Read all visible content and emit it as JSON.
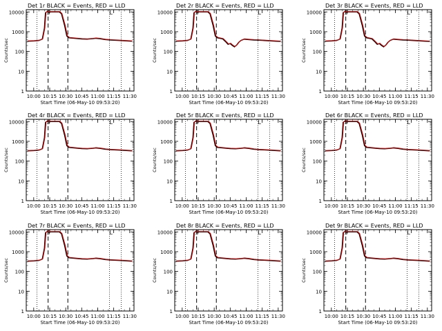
{
  "chart_data": [
    {
      "type": "line",
      "title": "Det 1r BLACK = Events, RED = LLD",
      "series": [
        {
          "name": "BLACK = Events",
          "color": "#000000"
        },
        {
          "name": "RED = LLD",
          "color": "#cc0000"
        }
      ],
      "profile": "plain"
    },
    {
      "type": "line",
      "title": "Det 2r BLACK = Events, RED = LLD",
      "series": [
        {
          "name": "BLACK = Events",
          "color": "#000000"
        },
        {
          "name": "RED = LLD",
          "color": "#cc0000"
        }
      ],
      "profile": "dip"
    },
    {
      "type": "line",
      "title": "Det 3r BLACK = Events, RED = LLD",
      "series": [
        {
          "name": "BLACK = Events",
          "color": "#000000"
        },
        {
          "name": "RED = LLD",
          "color": "#cc0000"
        }
      ],
      "profile": "dip"
    },
    {
      "type": "line",
      "title": "Det 4r BLACK = Events, RED = LLD",
      "series": [
        {
          "name": "BLACK = Events",
          "color": "#000000"
        },
        {
          "name": "RED = LLD",
          "color": "#cc0000"
        }
      ],
      "profile": "plain"
    },
    {
      "type": "line",
      "title": "Det 5r BLACK = Events, RED = LLD",
      "series": [
        {
          "name": "BLACK = Events",
          "color": "#000000"
        },
        {
          "name": "RED = LLD",
          "color": "#cc0000"
        }
      ],
      "profile": "plain"
    },
    {
      "type": "line",
      "title": "Det 6r BLACK = Events, RED = LLD",
      "series": [
        {
          "name": "BLACK = Events",
          "color": "#000000"
        },
        {
          "name": "RED = LLD",
          "color": "#cc0000"
        }
      ],
      "profile": "plain"
    },
    {
      "type": "line",
      "title": "Det 7r BLACK = Events, RED = LLD",
      "series": [
        {
          "name": "BLACK = Events",
          "color": "#000000"
        },
        {
          "name": "RED = LLD",
          "color": "#cc0000"
        }
      ],
      "profile": "plain"
    },
    {
      "type": "line",
      "title": "Det 8r BLACK = Events, RED = LLD",
      "series": [
        {
          "name": "BLACK = Events",
          "color": "#000000"
        },
        {
          "name": "RED = LLD",
          "color": "#cc0000"
        }
      ],
      "profile": "plain"
    },
    {
      "type": "line",
      "title": "Det 9r BLACK = Events, RED = LLD",
      "series": [
        {
          "name": "BLACK = Events",
          "color": "#000000"
        },
        {
          "name": "RED = LLD",
          "color": "#cc0000"
        }
      ],
      "profile": "plain"
    }
  ],
  "shared": {
    "xlabel": "Start Time (06-May-10 09:53:20)",
    "ylabel": "Counts/sec",
    "x_ticks": [
      "10:00",
      "10:15",
      "10:30",
      "10:45",
      "11:00",
      "11:15",
      "11:30"
    ],
    "x_tick_minutes": [
      0,
      15,
      30,
      45,
      60,
      75,
      90
    ],
    "xlim_minutes": [
      -7,
      94
    ],
    "y_ticks": [
      "1",
      "10",
      "100",
      "1000",
      "10000"
    ],
    "y_tick_values": [
      1,
      10,
      100,
      1000,
      10000
    ],
    "ylim": [
      1,
      13000
    ],
    "y_scale": "log",
    "markers": {
      "dashed_minutes": [
        13.5,
        32
      ],
      "dotted_minutes": [
        3,
        71,
        82
      ],
      "labels": [
        {
          "text": "S",
          "minute": 12
        },
        {
          "text": "L",
          "minute": 71
        }
      ]
    },
    "base_series": [
      [
        -6,
        330
      ],
      [
        0,
        340
      ],
      [
        5,
        360
      ],
      [
        8,
        420
      ],
      [
        10,
        1500
      ],
      [
        11,
        9000
      ],
      [
        12,
        10000
      ],
      [
        24,
        10000
      ],
      [
        26,
        8000
      ],
      [
        29,
        2000
      ],
      [
        31,
        600
      ],
      [
        33,
        490
      ],
      [
        38,
        460
      ],
      [
        45,
        430
      ],
      [
        50,
        420
      ],
      [
        55,
        440
      ],
      [
        58,
        460
      ],
      [
        62,
        440
      ],
      [
        67,
        400
      ],
      [
        72,
        380
      ],
      [
        80,
        360
      ],
      [
        88,
        340
      ],
      [
        92,
        330
      ]
    ],
    "dip_series": [
      [
        -6,
        330
      ],
      [
        0,
        340
      ],
      [
        5,
        360
      ],
      [
        8,
        420
      ],
      [
        10,
        1500
      ],
      [
        11,
        9000
      ],
      [
        12,
        10000
      ],
      [
        24,
        10000
      ],
      [
        26,
        8000
      ],
      [
        29,
        2000
      ],
      [
        31,
        600
      ],
      [
        33,
        490
      ],
      [
        38,
        430
      ],
      [
        41,
        300
      ],
      [
        43,
        230
      ],
      [
        45,
        250
      ],
      [
        47,
        200
      ],
      [
        49,
        170
      ],
      [
        51,
        210
      ],
      [
        53,
        290
      ],
      [
        55,
        360
      ],
      [
        58,
        420
      ],
      [
        62,
        400
      ],
      [
        67,
        380
      ],
      [
        72,
        370
      ],
      [
        80,
        350
      ],
      [
        88,
        330
      ],
      [
        92,
        320
      ]
    ]
  }
}
